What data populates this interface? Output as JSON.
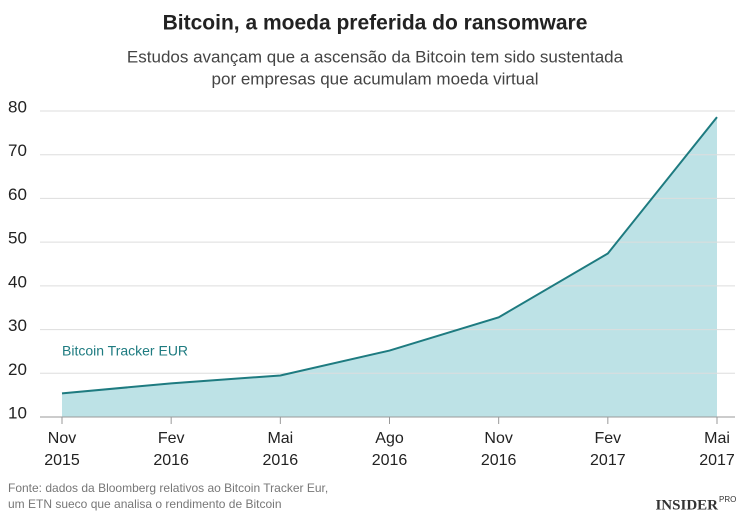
{
  "chart_data": {
    "type": "area",
    "title": "Bitcoin, a moeda preferida do ransomware",
    "subtitle": [
      "Estudos avançam que a ascensão da Bitcoin tem sido sustentada",
      "por empresas que acumulam moeda virtual"
    ],
    "categories": [
      "Nov 2015",
      "Fev 2016",
      "Mai 2016",
      "Ago 2016",
      "Nov 2016",
      "Fev 2017",
      "Mai 2017"
    ],
    "series": [
      {
        "name": "Bitcoin Tracker EUR",
        "color": "#1e7b80",
        "fill": "#bde2e6",
        "values": [
          15.4,
          17.7,
          19.5,
          25.2,
          32.8,
          47.4,
          78.6
        ]
      }
    ],
    "ylim": [
      10,
      80
    ],
    "yticks": [
      10,
      20,
      30,
      40,
      50,
      60,
      70,
      80
    ],
    "grid": true,
    "source": [
      "Fonte: dados da Bloomberg relativos ao Bitcoin Tracker Eur,",
      "um ETN sueco que analisa o rendimento de Bitcoin"
    ],
    "logo": {
      "main": "INSIDER",
      "sub": "PRO"
    }
  }
}
